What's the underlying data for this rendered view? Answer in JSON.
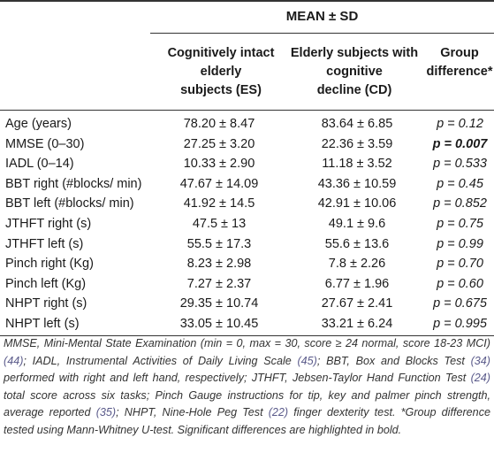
{
  "header": {
    "group": "MEAN ± SD",
    "col1": [
      "Cognitively intact",
      "elderly",
      "subjects (ES)"
    ],
    "col2": [
      "Elderly subjects with",
      "cognitive",
      "decline (CD)"
    ],
    "col3": [
      "Group",
      "difference*"
    ]
  },
  "rows": [
    {
      "label": "Age (years)",
      "es": "78.20 ± 8.47",
      "cd": "83.64 ± 6.85",
      "p": "p = 0.12",
      "significant": false
    },
    {
      "label": "MMSE (0–30)",
      "es": "27.25 ± 3.20",
      "cd": "22.36 ± 3.59",
      "p": "p = 0.007",
      "significant": true
    },
    {
      "label": "IADL (0–14)",
      "es": "10.33 ± 2.90",
      "cd": "11.18 ± 3.52",
      "p": "p = 0.533",
      "significant": false
    },
    {
      "label": "BBT right (#blocks/ min)",
      "es": "47.67 ± 14.09",
      "cd": "43.36 ± 10.59",
      "p": "p = 0.45",
      "significant": false
    },
    {
      "label": "BBT left (#blocks/ min)",
      "es": "41.92 ± 14.5",
      "cd": "42.91 ± 10.06",
      "p": "p = 0.852",
      "significant": false
    },
    {
      "label": "JTHFT right (s)",
      "es": "47.5 ± 13",
      "cd": "49.1 ± 9.6",
      "p": "p = 0.75",
      "significant": false
    },
    {
      "label": "JTHFT left (s)",
      "es": "55.5 ± 17.3",
      "cd": "55.6 ± 13.6",
      "p": "p = 0.99",
      "significant": false
    },
    {
      "label": "Pinch right (Kg)",
      "es": "8.23 ± 2.98",
      "cd": "7.8 ± 2.26",
      "p": "p = 0.70",
      "significant": false
    },
    {
      "label": "Pinch left (Kg)",
      "es": "7.27 ± 2.37",
      "cd": "6.77 ± 1.96",
      "p": "p = 0.60",
      "significant": false
    },
    {
      "label": "NHPT right (s)",
      "es": "29.35 ± 10.74",
      "cd": "27.67 ± 2.41",
      "p": "p = 0.675",
      "significant": false
    },
    {
      "label": "NHPT left (s)",
      "es": "33.05 ± 10.45",
      "cd": "33.21 ± 6.24",
      "p": "p = 0.995",
      "significant": false
    }
  ],
  "footnote": {
    "s1": "MMSE, Mini-Mental State Examination (min = 0, max = 30, score ≥ 24 normal, score 18-23 MCI) ",
    "c1": "(44)",
    "s2": "; IADL, Instrumental Activities of Daily Living Scale ",
    "c2": "(45)",
    "s3": "; BBT, Box and Blocks Test ",
    "c3": "(34)",
    "s4": " performed with right and left hand, respectively; JTHFT, Jebsen-Taylor Hand Function Test ",
    "c4": "(24)",
    "s5": " total score across six tasks; Pinch Gauge instructions for tip, key and palmer pinch strength, average reported ",
    "c5": "(35)",
    "s6": "; NHPT, Nine-Hole Peg Test ",
    "c6": "(22)",
    "s7": " finger dexterity test. *Group difference tested using Mann-Whitney U-test. Significant differences are highlighted in bold."
  }
}
